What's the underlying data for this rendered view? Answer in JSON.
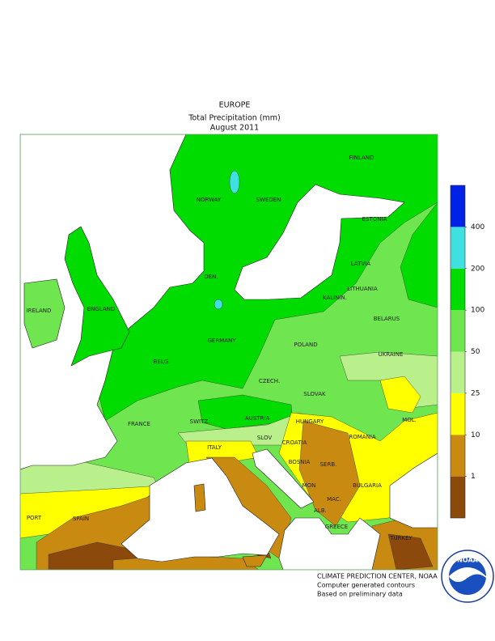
{
  "title": [
    "EUROPE",
    "Total Precipitation (mm)",
    "August 2011"
  ],
  "legend": {
    "colors": [
      "#8b4a0c",
      "#c98a12",
      "#ffff00",
      "#b9f08c",
      "#6fe64f",
      "#00dc00",
      "#3ee0e0",
      "#0022e6"
    ],
    "ticks": [
      1,
      10,
      25,
      50,
      100,
      200,
      400
    ]
  },
  "labels": [
    "NORWAY",
    "SWEDEN",
    "FINLAND",
    "ESTONIA",
    "LATVIA",
    "LITHUANIA",
    "KALININ.",
    "DEN.",
    "IRELAND",
    "ENGLAND",
    "GERMANY",
    "POLAND",
    "BELARUS",
    "BELG.",
    "CZECH.",
    "SLOVAK",
    "UKRAINE",
    "FRANCE",
    "SWITZ.",
    "AUSTRIA",
    "HUNGARY",
    "MOL.",
    "ITALY",
    "SLOV",
    "CROATIA",
    "ROMANIA",
    "BOSNIA",
    "SERB.",
    "BULGARIA",
    "MON",
    "MAC.",
    "ALB.",
    "PORT",
    "SPAIN",
    "GREECE",
    "TURKEY"
  ],
  "footer": [
    "CLIMATE PREDICTION CENTER, NOAA",
    "Computer generated contours",
    "Based on preliminary data"
  ],
  "logo": "NOAA"
}
